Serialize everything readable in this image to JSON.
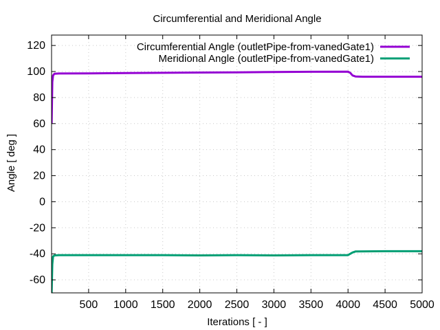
{
  "chart_data": {
    "type": "line",
    "title": "Circumferential and Meridional Angle",
    "xlabel": "Iterations [ - ]",
    "ylabel": "Angle [ deg ]",
    "xlim": [
      0,
      5000
    ],
    "ylim": [
      -70,
      128
    ],
    "xticks": [
      500,
      1000,
      1500,
      2000,
      2500,
      3000,
      3500,
      4000,
      4500,
      5000
    ],
    "yticks": [
      -60,
      -40,
      -20,
      0,
      20,
      40,
      60,
      80,
      100,
      120
    ],
    "grid": true,
    "legend_position": "top-right",
    "series": [
      {
        "name": "Circumferential Angle (outletPipe-from-vanedGate1)",
        "color": "#9400d3",
        "points": [
          [
            1,
            60
          ],
          [
            10,
            92
          ],
          [
            20,
            97
          ],
          [
            40,
            98.3
          ],
          [
            100,
            98.5
          ],
          [
            500,
            98.6
          ],
          [
            1000,
            98.8
          ],
          [
            1500,
            99.0
          ],
          [
            2000,
            99.2
          ],
          [
            2500,
            99.4
          ],
          [
            3000,
            99.6
          ],
          [
            3500,
            99.8
          ],
          [
            4000,
            99.9
          ],
          [
            4030,
            99.0
          ],
          [
            4060,
            97.0
          ],
          [
            4100,
            96.2
          ],
          [
            4200,
            96.0
          ],
          [
            4500,
            96.0
          ],
          [
            5000,
            96.0
          ]
        ]
      },
      {
        "name": "Meridional Angle (outletPipe-from-vanedGate1)",
        "color": "#009e73",
        "points": [
          [
            1,
            -70
          ],
          [
            10,
            -48
          ],
          [
            20,
            -42
          ],
          [
            40,
            -41.2
          ],
          [
            100,
            -41
          ],
          [
            500,
            -41
          ],
          [
            1000,
            -41
          ],
          [
            1500,
            -41
          ],
          [
            2000,
            -41.2
          ],
          [
            2500,
            -41
          ],
          [
            3000,
            -41.2
          ],
          [
            3500,
            -41
          ],
          [
            4000,
            -41
          ],
          [
            4030,
            -40
          ],
          [
            4060,
            -39
          ],
          [
            4100,
            -38.2
          ],
          [
            4500,
            -38
          ],
          [
            5000,
            -38
          ]
        ]
      }
    ]
  }
}
